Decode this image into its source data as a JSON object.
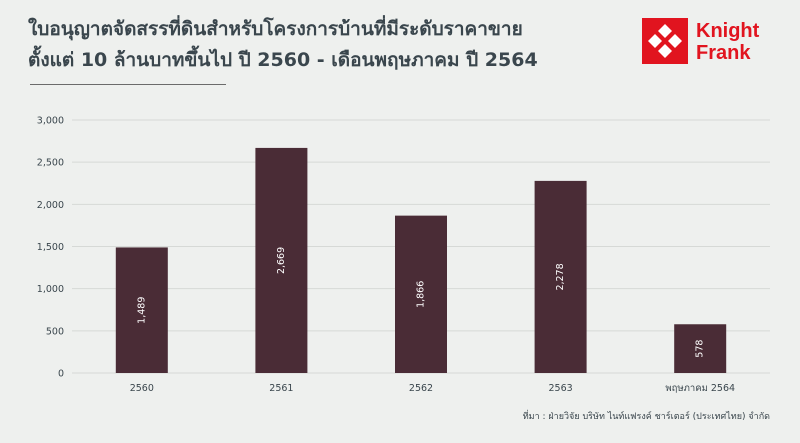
{
  "header": {
    "title_line1": "ใบอนุญาตจัดสรรที่ดินสำหรับโครงการบ้านที่มีระดับราคาขาย",
    "title_line2": "ตั้งแต่ 10 ล้านบาทขึ้นไป ปี 2560 - เดือนพฤษภาคม ปี 2564"
  },
  "logo": {
    "line1": "Knight",
    "line2": "Frank",
    "color": "#e1141f"
  },
  "source": "ที่มา : ฝ่ายวิจัย บริษัท ไนท์แฟรงค์ ชาร์เตอร์ (ประเทศไทย) จำกัด",
  "colors": {
    "bar": "#4a2c36",
    "background": "#eef0ee",
    "grid": "#d6d9d6"
  },
  "chart_data": {
    "type": "bar",
    "categories": [
      "2560",
      "2561",
      "2562",
      "2563",
      "พฤษภาคม 2564"
    ],
    "values": [
      1489,
      2669,
      1866,
      2278,
      578
    ],
    "value_labels": [
      "1,489",
      "2,669",
      "1,866",
      "2,278",
      "578"
    ],
    "title": "ใบอนุญาตจัดสรรที่ดินสำหรับโครงการบ้านที่มีระดับราคาขาย ตั้งแต่ 10 ล้านบาทขึ้นไป ปี 2560 - เดือนพฤษภาคม ปี 2564",
    "xlabel": "",
    "ylabel": "",
    "ylim": [
      0,
      3000
    ],
    "yticks": [
      0,
      500,
      1000,
      1500,
      2000,
      2500,
      3000
    ],
    "ytick_labels": [
      "0",
      "500",
      "1,000",
      "1,500",
      "2,000",
      "2,500",
      "3,000"
    ],
    "grid": true,
    "legend": "none"
  }
}
